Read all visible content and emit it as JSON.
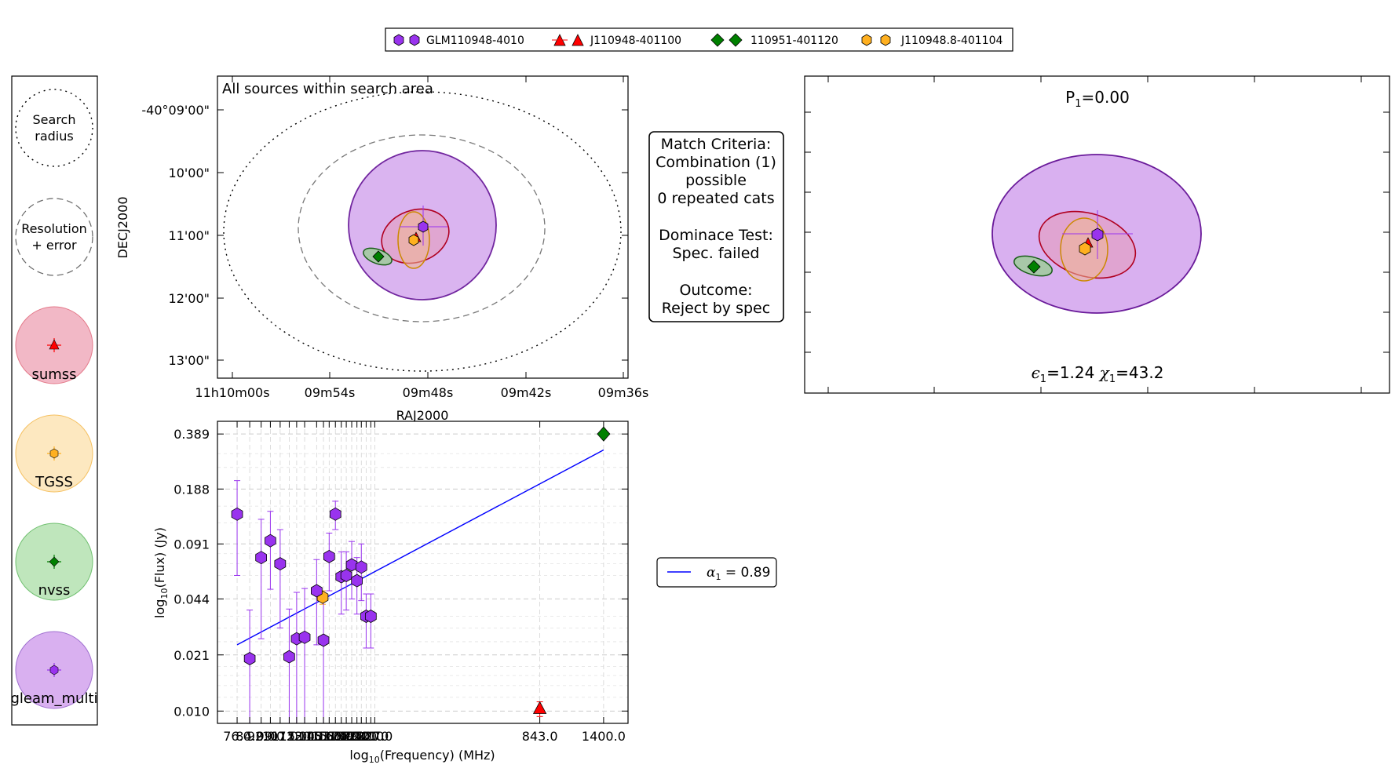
{
  "legend": {
    "entries": [
      {
        "label": "GLM110948-4010",
        "color": "#9933ee",
        "marker": "hexagon"
      },
      {
        "label": "J110948-401100",
        "color": "#ff0000",
        "marker": "triangle"
      },
      {
        "label": "110951-401120",
        "color": "#008000",
        "marker": "diamond"
      },
      {
        "label": "J110948.8-401104",
        "color": "#ffb020",
        "marker": "hexagon"
      }
    ]
  },
  "key_panel": {
    "items": [
      {
        "label": "Search\nradius",
        "style": "dotted"
      },
      {
        "label": "Resolution\n+ error",
        "style": "dashed"
      },
      {
        "label": "sumss",
        "fill": "#f2b8c6",
        "edge": "#e06070",
        "marker_color": "#ff0000",
        "marker": "triangle"
      },
      {
        "label": "TGSS",
        "fill": "#fde8c0",
        "edge": "#f5c060",
        "marker_color": "#ffb020",
        "marker": "hexagon"
      },
      {
        "label": "nvss",
        "fill": "#bfe6bc",
        "edge": "#70c070",
        "marker_color": "#008000",
        "marker": "diamond"
      },
      {
        "label": "gleam_multi",
        "fill": "#d9b0f0",
        "edge": "#a070d0",
        "marker_color": "#9933ee",
        "marker": "hexagon"
      }
    ]
  },
  "sky_panel": {
    "title": "All sources within search area",
    "xlabel": "RAJ2000",
    "ylabel": "DECJ2000",
    "xticks": [
      "11h10m00s",
      "09m54s",
      "09m48s",
      "09m42s",
      "09m36s"
    ],
    "yticks": [
      "-40°09'00\"",
      "10'00\"",
      "11'00\"",
      "12'00\"",
      "13'00\""
    ]
  },
  "match_box": {
    "lines": [
      "Match Criteria:",
      "Combination (1)",
      "possible",
      "0 repeated cats",
      "",
      "Dominace Test:",
      "Spec. failed",
      "",
      "Outcome:",
      "Reject by spec"
    ]
  },
  "combo_panel": {
    "prob_label": "P",
    "prob_sub": "1",
    "prob_value": "=0.00",
    "eps_label": "ϵ",
    "eps_sub": "1",
    "eps_value": "=1.24",
    "chi_label": "χ",
    "chi_sub": "1",
    "chi_value": "=43.2"
  },
  "fit_legend": {
    "label": "α",
    "sub": "1",
    "value": " = 0.89",
    "color": "#0000ff"
  },
  "chart_data": {
    "type": "scatter",
    "xlabel": "log10(Frequency) (MHz)",
    "ylabel": "log10(Flux) (Jy)",
    "xlabel_parts": {
      "pre": "log",
      "sub": "10",
      "post": "(Frequency) (MHz)"
    },
    "ylabel_parts": {
      "pre": "log",
      "sub": "10",
      "post": "(Flux) (Jy)"
    },
    "log_x": true,
    "log_y": true,
    "xlim": [
      65,
      1700
    ],
    "ylim": [
      0.0085,
      0.46
    ],
    "x_tick_labels": [
      "76.0",
      "84.0",
      "92.0",
      "99.0",
      "107.0",
      "115.0",
      "122.0",
      "130.0",
      "143.0",
      "151.0",
      "158.0",
      "166.0",
      "174.0",
      "181.0",
      "189.0",
      "197.0",
      "204.0",
      "212.0",
      "220.0",
      "227.0",
      "843.0",
      "1400.0"
    ],
    "y_tick_labels": [
      "0.010",
      "0.021",
      "0.044",
      "0.091",
      "0.188",
      "0.389"
    ],
    "grid": true,
    "series": [
      {
        "name": "gleam_multi",
        "color": "#9933ee",
        "marker": "hexagon",
        "points": [
          {
            "x": 76,
            "y": 0.135,
            "err": 0.075
          },
          {
            "x": 84,
            "y": 0.02,
            "err": 0.018
          },
          {
            "x": 92,
            "y": 0.076,
            "err": 0.05
          },
          {
            "x": 99,
            "y": 0.095,
            "err": 0.045
          },
          {
            "x": 107,
            "y": 0.07,
            "err": 0.04
          },
          {
            "x": 115,
            "y": 0.0205,
            "err": 0.018
          },
          {
            "x": 122,
            "y": 0.026,
            "err": 0.022
          },
          {
            "x": 130,
            "y": 0.0265,
            "err": 0.024
          },
          {
            "x": 143,
            "y": 0.049,
            "err": 0.025
          },
          {
            "x": 151,
            "y": 0.0255,
            "err": 0.022
          },
          {
            "x": 158,
            "y": 0.077,
            "err": 0.028
          },
          {
            "x": 166,
            "y": 0.135,
            "err": 0.025
          },
          {
            "x": 174,
            "y": 0.059,
            "err": 0.023
          },
          {
            "x": 181,
            "y": 0.06,
            "err": 0.022
          },
          {
            "x": 189,
            "y": 0.069,
            "err": 0.025
          },
          {
            "x": 197,
            "y": 0.056,
            "err": 0.02
          },
          {
            "x": 204,
            "y": 0.067,
            "err": 0.024
          },
          {
            "x": 212,
            "y": 0.035,
            "err": 0.012
          },
          {
            "x": 220,
            "y": 0.035,
            "err": 0.012
          }
        ]
      },
      {
        "name": "sumss",
        "color": "#ff0000",
        "marker": "triangle",
        "points": [
          {
            "x": 843,
            "y": 0.0103,
            "err": 0.001
          }
        ]
      },
      {
        "name": "TGSS",
        "color": "#ffb020",
        "marker": "hexagon",
        "points": [
          {
            "x": 150,
            "y": 0.045,
            "err": 0.004
          }
        ]
      },
      {
        "name": "nvss",
        "color": "#008000",
        "marker": "diamond",
        "points": [
          {
            "x": 1400,
            "y": 0.389,
            "err": 0.012
          }
        ]
      }
    ],
    "fit_line": {
      "label": "α1 = 0.89",
      "color": "#0000ff",
      "x": [
        76,
        1400
      ],
      "y": [
        0.024,
        0.315
      ]
    }
  }
}
